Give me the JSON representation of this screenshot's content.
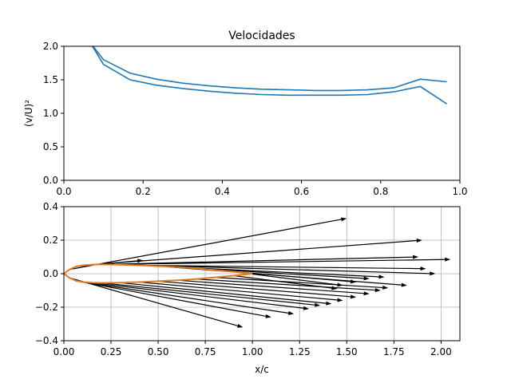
{
  "colors": {
    "series": "#1f77b4",
    "profile": "#e07b22",
    "arrows": "#000000",
    "grid": "#b0b0b0"
  },
  "chart_data": [
    {
      "type": "line",
      "title": "Velocidades",
      "xlabel": "",
      "ylabel": "(v/U)²",
      "xlim": [
        0.0,
        1.0
      ],
      "ylim": [
        0.0,
        2.0
      ],
      "xticks": [
        "0.0",
        "0.2",
        "0.4",
        "0.6",
        "0.8",
        "1.0"
      ],
      "yticks": [
        "0.0",
        "0.5",
        "1.0",
        "1.5",
        "2.0"
      ],
      "grid": false,
      "series": [
        {
          "x": [
            0.07,
            0.1,
            0.167,
            0.233,
            0.3,
            0.367,
            0.433,
            0.5,
            0.567,
            0.633,
            0.7,
            0.767,
            0.833,
            0.9,
            0.967
          ],
          "y": [
            2.02,
            1.73,
            1.5,
            1.42,
            1.37,
            1.33,
            1.3,
            1.28,
            1.27,
            1.27,
            1.27,
            1.28,
            1.32,
            1.4,
            1.14
          ]
        },
        {
          "x": [
            0.07,
            0.1,
            0.167,
            0.233,
            0.3,
            0.367,
            0.433,
            0.5,
            0.567,
            0.633,
            0.7,
            0.767,
            0.833,
            0.9,
            0.967
          ],
          "y": [
            2.03,
            1.8,
            1.6,
            1.51,
            1.45,
            1.41,
            1.38,
            1.36,
            1.35,
            1.34,
            1.34,
            1.35,
            1.38,
            1.51,
            1.47
          ]
        }
      ]
    },
    {
      "type": "line",
      "title": "",
      "xlabel": "x/c",
      "ylabel": "",
      "xlim": [
        0.0,
        2.1
      ],
      "ylim": [
        -0.4,
        0.4
      ],
      "xticks": [
        "0.00",
        "0.25",
        "0.50",
        "0.75",
        "1.00",
        "1.25",
        "1.50",
        "1.75",
        "2.00"
      ],
      "yticks": [
        "−0.4",
        "−0.2",
        "0.0",
        "0.2",
        "0.4"
      ],
      "grid": true,
      "profile": {
        "x": [
          1.0,
          0.9,
          0.8,
          0.7,
          0.6,
          0.5,
          0.4,
          0.3,
          0.2,
          0.15,
          0.1,
          0.065,
          0.03,
          0.0,
          0.03,
          0.065,
          0.1,
          0.15,
          0.2,
          0.3,
          0.4,
          0.5,
          0.6,
          0.7,
          0.8,
          0.9,
          1.0
        ],
        "y": [
          0.0,
          0.012,
          0.022,
          0.032,
          0.039,
          0.045,
          0.05,
          0.054,
          0.055,
          0.054,
          0.05,
          0.043,
          0.025,
          0.0,
          -0.025,
          -0.043,
          -0.05,
          -0.054,
          -0.055,
          -0.054,
          -0.05,
          -0.045,
          -0.039,
          -0.032,
          -0.022,
          -0.012,
          0.0
        ]
      },
      "vectors": [
        {
          "x0": 0.03,
          "y0": 0.025,
          "x1": 1.5,
          "y1": 0.33
        },
        {
          "x0": 0.065,
          "y0": 0.043,
          "x1": 0.42,
          "y1": 0.08
        },
        {
          "x0": 0.1,
          "y0": 0.05,
          "x1": 1.9,
          "y1": 0.2
        },
        {
          "x0": 0.15,
          "y0": 0.054,
          "x1": 2.05,
          "y1": 0.085
        },
        {
          "x0": 0.2,
          "y0": 0.055,
          "x1": 1.88,
          "y1": 0.1
        },
        {
          "x0": 0.3,
          "y0": 0.054,
          "x1": 1.97,
          "y1": 0.0
        },
        {
          "x0": 0.4,
          "y0": 0.05,
          "x1": 1.92,
          "y1": 0.03
        },
        {
          "x0": 0.5,
          "y0": 0.045,
          "x1": 1.82,
          "y1": -0.07
        },
        {
          "x0": 0.6,
          "y0": 0.039,
          "x1": 1.7,
          "y1": -0.02
        },
        {
          "x0": 0.7,
          "y0": 0.032,
          "x1": 1.62,
          "y1": -0.03
        },
        {
          "x0": 0.8,
          "y0": 0.022,
          "x1": 1.55,
          "y1": -0.05
        },
        {
          "x0": 0.9,
          "y0": 0.012,
          "x1": 1.48,
          "y1": -0.07
        },
        {
          "x0": 0.03,
          "y0": -0.025,
          "x1": 0.95,
          "y1": -0.32
        },
        {
          "x0": 0.065,
          "y0": -0.043,
          "x1": 1.1,
          "y1": -0.26
        },
        {
          "x0": 0.1,
          "y0": -0.05,
          "x1": 1.22,
          "y1": -0.24
        },
        {
          "x0": 0.15,
          "y0": -0.054,
          "x1": 1.3,
          "y1": -0.21
        },
        {
          "x0": 0.2,
          "y0": -0.055,
          "x1": 1.36,
          "y1": -0.19
        },
        {
          "x0": 0.3,
          "y0": -0.054,
          "x1": 1.42,
          "y1": -0.18
        },
        {
          "x0": 0.4,
          "y0": -0.05,
          "x1": 1.48,
          "y1": -0.16
        },
        {
          "x0": 0.5,
          "y0": -0.045,
          "x1": 1.55,
          "y1": -0.14
        },
        {
          "x0": 0.6,
          "y0": -0.039,
          "x1": 1.62,
          "y1": -0.12
        },
        {
          "x0": 0.7,
          "y0": -0.032,
          "x1": 1.68,
          "y1": -0.1
        },
        {
          "x0": 0.8,
          "y0": -0.022,
          "x1": 1.72,
          "y1": -0.085
        },
        {
          "x0": 0.9,
          "y0": -0.012,
          "x1": 1.45,
          "y1": -0.09
        }
      ]
    }
  ]
}
